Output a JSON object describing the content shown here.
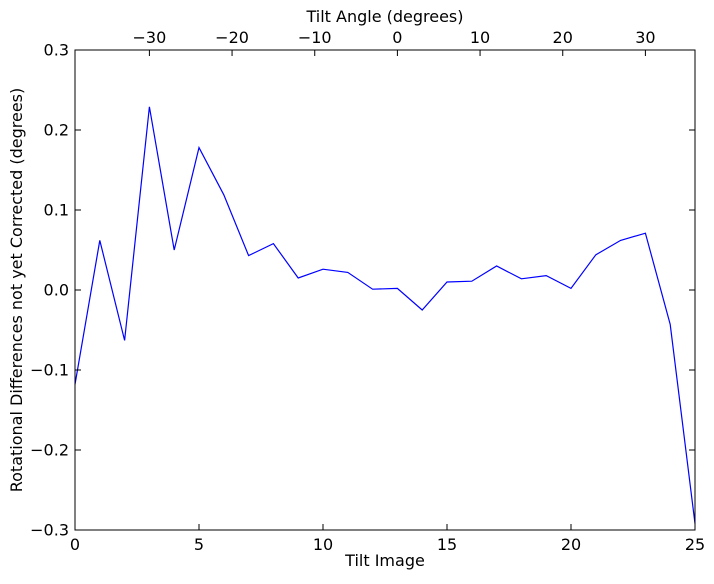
{
  "chart_data": {
    "type": "line",
    "xlabel": "Tilt Image",
    "ylabel": "Rotational Differences not yet Corrected (degrees)",
    "top_xlabel": "Tilt Angle (degrees)",
    "xlim": [
      0,
      25
    ],
    "ylim": [
      -0.3,
      0.3
    ],
    "x_ticks": [
      0,
      5,
      10,
      15,
      20,
      25
    ],
    "x_tick_labels": [
      "0",
      "5",
      "10",
      "15",
      "20",
      "25"
    ],
    "y_ticks": [
      -0.3,
      -0.2,
      -0.1,
      0.0,
      0.1,
      0.2,
      0.3
    ],
    "y_tick_labels": [
      "−0.3",
      "−0.2",
      "−0.1",
      "0.0",
      "0.1",
      "0.2",
      "0.3"
    ],
    "top_axis": {
      "tick_labels": [
        "−30",
        "−20",
        "−10",
        "0",
        "10",
        "20",
        "30"
      ],
      "tick_positions_in_x_units": [
        3.0,
        6.333,
        9.667,
        13.0,
        16.333,
        19.667,
        23.0
      ]
    },
    "grid": false,
    "series": [
      {
        "color": "#0000ff",
        "x": [
          0,
          1,
          2,
          3,
          4,
          5,
          6,
          7,
          8,
          9,
          10,
          11,
          12,
          13,
          14,
          15,
          16,
          17,
          18,
          19,
          20,
          21,
          22,
          23,
          24,
          25
        ],
        "values": [
          -0.118,
          0.062,
          -0.063,
          0.229,
          0.05,
          0.178,
          0.119,
          0.043,
          0.058,
          0.015,
          0.026,
          0.022,
          0.001,
          0.002,
          -0.025,
          0.01,
          0.011,
          0.03,
          0.014,
          0.018,
          0.002,
          0.044,
          0.062,
          0.071,
          -0.043,
          -0.292
        ]
      }
    ]
  }
}
